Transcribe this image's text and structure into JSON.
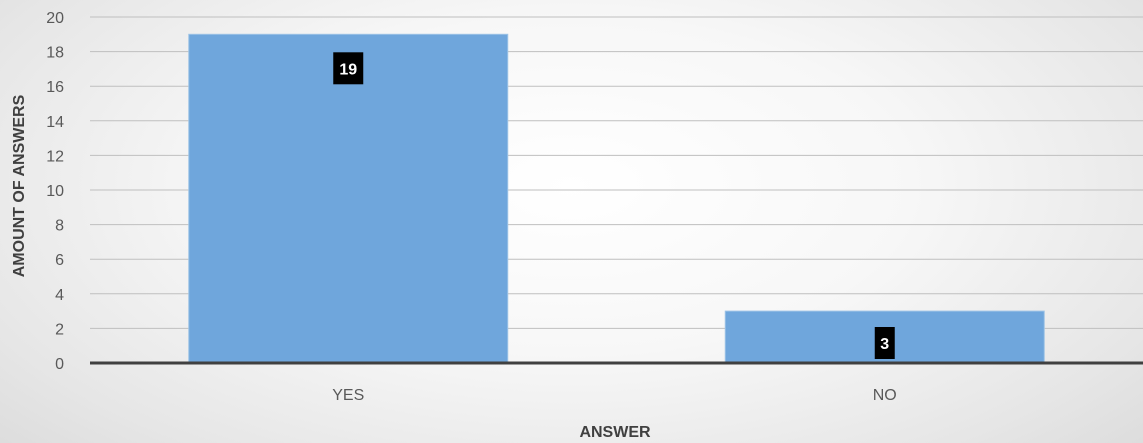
{
  "chart_data": {
    "type": "bar",
    "title": "",
    "xlabel": "ANSWER",
    "ylabel": "AMOUNT OF ANSWERS",
    "categories": [
      "YES",
      "NO"
    ],
    "values": [
      19,
      3
    ],
    "data_labels": [
      "19",
      "3"
    ],
    "ylim": [
      0,
      20
    ],
    "yticks": [
      "0",
      "2",
      "4",
      "6",
      "8",
      "10",
      "12",
      "14",
      "16",
      "18",
      "20"
    ],
    "grid": true,
    "legend": "none",
    "colors": {
      "bar_fill": "#6FA6DC",
      "bar_stroke": "#9DC3E6",
      "label_box": "#000000",
      "label_text": "#FFFFFF",
      "gridline": "#BFBFBF",
      "axis_line": "#404040"
    }
  }
}
